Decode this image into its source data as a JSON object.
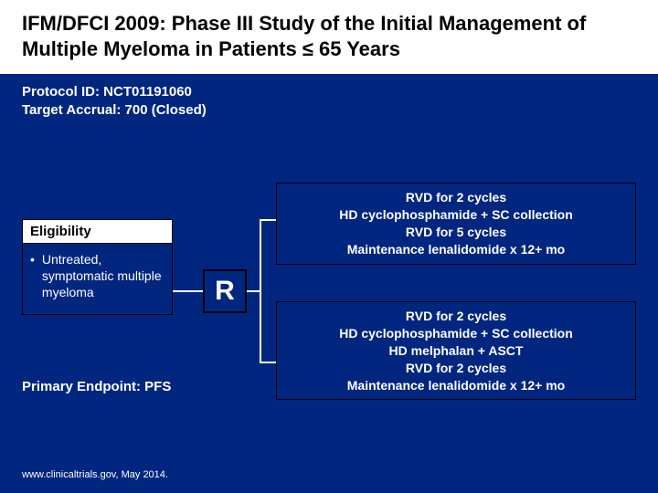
{
  "colors": {
    "slide_bg": "#00267f",
    "panel_bg": "#ffffff",
    "text_light": "#ffffff",
    "text_dark": "#000000",
    "border": "#000000",
    "connector": "#ffffff"
  },
  "title": "IFM/DFCI 2009: Phase III Study of the Initial Management of Multiple Myeloma in Patients ≤ 65 Years",
  "meta": {
    "protocol": "Protocol ID: NCT01191060",
    "accrual": "Target Accrual: 700 (Closed)"
  },
  "eligibility": {
    "header": "Eligibility",
    "item1": "Untreated, symptomatic multiple myeloma"
  },
  "randomize_label": "R",
  "arms": {
    "a": {
      "l1": "RVD for 2 cycles",
      "l2": "HD cyclophosphamide + SC collection",
      "l3": "RVD for 5 cycles",
      "l4": "Maintenance lenalidomide x 12+ mo"
    },
    "b": {
      "l1": "RVD for 2 cycles",
      "l2": "HD cyclophosphamide + SC collection",
      "l3": "HD melphalan + ASCT",
      "l4": "RVD for 2 cycles",
      "l5": "Maintenance lenalidomide x 12+ mo"
    }
  },
  "primary_endpoint": "Primary Endpoint: PFS",
  "citation": "www.clinicaltrials.gov, May 2014."
}
